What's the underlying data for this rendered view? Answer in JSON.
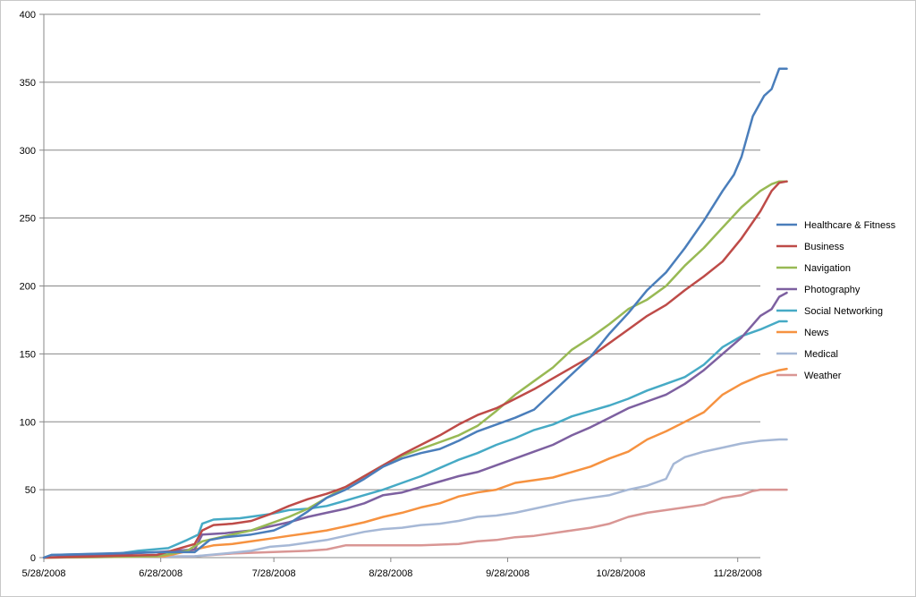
{
  "chart_data": {
    "type": "line",
    "title": "",
    "xlabel": "",
    "ylabel": "",
    "ylim": [
      0,
      400
    ],
    "yticks": [
      0,
      50,
      100,
      150,
      200,
      250,
      300,
      350,
      400
    ],
    "xlim": [
      0,
      190
    ],
    "xticks": [
      {
        "label": "5/28/2008",
        "day": 0
      },
      {
        "label": "6/28/2008",
        "day": 31
      },
      {
        "label": "7/28/2008",
        "day": 61
      },
      {
        "label": "8/28/2008",
        "day": 92
      },
      {
        "label": "9/28/2008",
        "day": 123
      },
      {
        "label": "10/28/2008",
        "day": 153
      },
      {
        "label": "11/28/2008",
        "day": 184
      }
    ],
    "grid": "horizontal",
    "legend_position": "right",
    "series": [
      {
        "name": "Healthcare & Fitness",
        "color": "#4a7ebb",
        "points": [
          [
            0,
            0
          ],
          [
            2,
            2
          ],
          [
            30,
            4
          ],
          [
            40,
            4
          ],
          [
            44,
            13
          ],
          [
            48,
            15
          ],
          [
            55,
            17
          ],
          [
            61,
            20
          ],
          [
            65,
            25
          ],
          [
            70,
            34
          ],
          [
            75,
            44
          ],
          [
            80,
            50
          ],
          [
            85,
            58
          ],
          [
            90,
            67
          ],
          [
            95,
            73
          ],
          [
            100,
            77
          ],
          [
            105,
            80
          ],
          [
            110,
            86
          ],
          [
            115,
            93
          ],
          [
            120,
            98
          ],
          [
            125,
            103
          ],
          [
            130,
            109
          ],
          [
            135,
            122
          ],
          [
            140,
            135
          ],
          [
            145,
            148
          ],
          [
            150,
            165
          ],
          [
            155,
            180
          ],
          [
            160,
            197
          ],
          [
            165,
            210
          ],
          [
            170,
            228
          ],
          [
            175,
            248
          ],
          [
            180,
            270
          ],
          [
            183,
            282
          ],
          [
            185,
            295
          ],
          [
            188,
            325
          ],
          [
            191,
            340
          ],
          [
            193,
            345
          ],
          [
            195,
            360
          ],
          [
            197,
            360
          ]
        ]
      },
      {
        "name": "Business",
        "color": "#be4b48",
        "points": [
          [
            0,
            0
          ],
          [
            30,
            2
          ],
          [
            40,
            10
          ],
          [
            42,
            20
          ],
          [
            45,
            24
          ],
          [
            50,
            25
          ],
          [
            55,
            27
          ],
          [
            60,
            32
          ],
          [
            65,
            38
          ],
          [
            70,
            43
          ],
          [
            75,
            47
          ],
          [
            80,
            52
          ],
          [
            85,
            60
          ],
          [
            90,
            68
          ],
          [
            95,
            76
          ],
          [
            100,
            83
          ],
          [
            105,
            90
          ],
          [
            110,
            98
          ],
          [
            115,
            105
          ],
          [
            120,
            110
          ],
          [
            125,
            117
          ],
          [
            130,
            124
          ],
          [
            135,
            132
          ],
          [
            140,
            140
          ],
          [
            145,
            148
          ],
          [
            150,
            158
          ],
          [
            155,
            168
          ],
          [
            160,
            178
          ],
          [
            165,
            186
          ],
          [
            170,
            197
          ],
          [
            175,
            207
          ],
          [
            180,
            218
          ],
          [
            185,
            235
          ],
          [
            190,
            255
          ],
          [
            193,
            270
          ],
          [
            195,
            276
          ],
          [
            197,
            277
          ]
        ]
      },
      {
        "name": "Navigation",
        "color": "#98b954",
        "points": [
          [
            0,
            0
          ],
          [
            30,
            1
          ],
          [
            38,
            5
          ],
          [
            42,
            12
          ],
          [
            50,
            17
          ],
          [
            55,
            20
          ],
          [
            60,
            25
          ],
          [
            65,
            30
          ],
          [
            70,
            36
          ],
          [
            75,
            44
          ],
          [
            80,
            52
          ],
          [
            85,
            60
          ],
          [
            90,
            68
          ],
          [
            95,
            75
          ],
          [
            100,
            80
          ],
          [
            105,
            85
          ],
          [
            110,
            90
          ],
          [
            115,
            97
          ],
          [
            120,
            108
          ],
          [
            125,
            120
          ],
          [
            130,
            130
          ],
          [
            135,
            140
          ],
          [
            140,
            153
          ],
          [
            145,
            162
          ],
          [
            150,
            172
          ],
          [
            155,
            183
          ],
          [
            160,
            190
          ],
          [
            165,
            200
          ],
          [
            170,
            215
          ],
          [
            175,
            228
          ],
          [
            180,
            243
          ],
          [
            185,
            258
          ],
          [
            190,
            270
          ],
          [
            193,
            275
          ],
          [
            195,
            277
          ],
          [
            197,
            277
          ]
        ]
      },
      {
        "name": "Photography",
        "color": "#7d60a0",
        "points": [
          [
            0,
            0
          ],
          [
            30,
            4
          ],
          [
            40,
            6
          ],
          [
            42,
            17
          ],
          [
            48,
            18
          ],
          [
            55,
            20
          ],
          [
            60,
            23
          ],
          [
            65,
            26
          ],
          [
            70,
            30
          ],
          [
            75,
            33
          ],
          [
            80,
            36
          ],
          [
            85,
            40
          ],
          [
            90,
            46
          ],
          [
            95,
            48
          ],
          [
            100,
            52
          ],
          [
            105,
            56
          ],
          [
            110,
            60
          ],
          [
            115,
            63
          ],
          [
            120,
            68
          ],
          [
            125,
            73
          ],
          [
            130,
            78
          ],
          [
            135,
            83
          ],
          [
            140,
            90
          ],
          [
            145,
            96
          ],
          [
            150,
            103
          ],
          [
            155,
            110
          ],
          [
            160,
            115
          ],
          [
            165,
            120
          ],
          [
            170,
            128
          ],
          [
            175,
            138
          ],
          [
            180,
            150
          ],
          [
            185,
            162
          ],
          [
            190,
            178
          ],
          [
            193,
            183
          ],
          [
            195,
            192
          ],
          [
            197,
            195
          ]
        ]
      },
      {
        "name": "Social Networking",
        "color": "#46aac5",
        "points": [
          [
            0,
            0
          ],
          [
            2,
            2
          ],
          [
            20,
            3
          ],
          [
            25,
            5
          ],
          [
            33,
            7
          ],
          [
            38,
            13
          ],
          [
            41,
            17
          ],
          [
            42,
            25
          ],
          [
            45,
            28
          ],
          [
            52,
            29
          ],
          [
            60,
            32
          ],
          [
            65,
            35
          ],
          [
            70,
            36
          ],
          [
            75,
            38
          ],
          [
            80,
            42
          ],
          [
            85,
            46
          ],
          [
            90,
            50
          ],
          [
            95,
            55
          ],
          [
            100,
            60
          ],
          [
            105,
            66
          ],
          [
            110,
            72
          ],
          [
            115,
            77
          ],
          [
            120,
            83
          ],
          [
            125,
            88
          ],
          [
            130,
            94
          ],
          [
            135,
            98
          ],
          [
            140,
            104
          ],
          [
            145,
            108
          ],
          [
            150,
            112
          ],
          [
            155,
            117
          ],
          [
            160,
            123
          ],
          [
            165,
            128
          ],
          [
            170,
            133
          ],
          [
            175,
            142
          ],
          [
            180,
            155
          ],
          [
            185,
            163
          ],
          [
            190,
            168
          ],
          [
            195,
            174
          ],
          [
            197,
            174
          ]
        ]
      },
      {
        "name": "News",
        "color": "#f69240",
        "points": [
          [
            0,
            0
          ],
          [
            32,
            1
          ],
          [
            40,
            6
          ],
          [
            45,
            9
          ],
          [
            50,
            10
          ],
          [
            55,
            12
          ],
          [
            60,
            14
          ],
          [
            65,
            16
          ],
          [
            70,
            18
          ],
          [
            75,
            20
          ],
          [
            80,
            23
          ],
          [
            85,
            26
          ],
          [
            90,
            30
          ],
          [
            95,
            33
          ],
          [
            100,
            37
          ],
          [
            105,
            40
          ],
          [
            110,
            45
          ],
          [
            115,
            48
          ],
          [
            120,
            50
          ],
          [
            125,
            55
          ],
          [
            130,
            57
          ],
          [
            135,
            59
          ],
          [
            140,
            63
          ],
          [
            145,
            67
          ],
          [
            150,
            73
          ],
          [
            155,
            78
          ],
          [
            160,
            87
          ],
          [
            165,
            93
          ],
          [
            170,
            100
          ],
          [
            175,
            107
          ],
          [
            180,
            120
          ],
          [
            185,
            128
          ],
          [
            190,
            134
          ],
          [
            195,
            138
          ],
          [
            197,
            139
          ]
        ]
      },
      {
        "name": "Medical",
        "color": "#a6b8d6",
        "points": [
          [
            0,
            0
          ],
          [
            40,
            1
          ],
          [
            48,
            3
          ],
          [
            55,
            5
          ],
          [
            60,
            8
          ],
          [
            65,
            9
          ],
          [
            70,
            11
          ],
          [
            75,
            13
          ],
          [
            80,
            16
          ],
          [
            85,
            19
          ],
          [
            90,
            21
          ],
          [
            95,
            22
          ],
          [
            100,
            24
          ],
          [
            105,
            25
          ],
          [
            110,
            27
          ],
          [
            115,
            30
          ],
          [
            120,
            31
          ],
          [
            125,
            33
          ],
          [
            130,
            36
          ],
          [
            135,
            39
          ],
          [
            140,
            42
          ],
          [
            145,
            44
          ],
          [
            150,
            46
          ],
          [
            155,
            50
          ],
          [
            160,
            53
          ],
          [
            165,
            58
          ],
          [
            167,
            69
          ],
          [
            170,
            74
          ],
          [
            175,
            78
          ],
          [
            180,
            81
          ],
          [
            185,
            84
          ],
          [
            190,
            86
          ],
          [
            195,
            87
          ],
          [
            197,
            87
          ]
        ]
      },
      {
        "name": "Weather",
        "color": "#d99694",
        "points": [
          [
            0,
            0
          ],
          [
            40,
            1
          ],
          [
            50,
            3
          ],
          [
            60,
            4
          ],
          [
            70,
            5
          ],
          [
            75,
            6
          ],
          [
            80,
            9
          ],
          [
            90,
            9
          ],
          [
            100,
            9
          ],
          [
            110,
            10
          ],
          [
            115,
            12
          ],
          [
            120,
            13
          ],
          [
            125,
            15
          ],
          [
            130,
            16
          ],
          [
            135,
            18
          ],
          [
            140,
            20
          ],
          [
            145,
            22
          ],
          [
            150,
            25
          ],
          [
            155,
            30
          ],
          [
            160,
            33
          ],
          [
            165,
            35
          ],
          [
            170,
            37
          ],
          [
            175,
            39
          ],
          [
            180,
            44
          ],
          [
            185,
            46
          ],
          [
            188,
            49
          ],
          [
            190,
            50
          ],
          [
            197,
            50
          ]
        ]
      }
    ]
  }
}
